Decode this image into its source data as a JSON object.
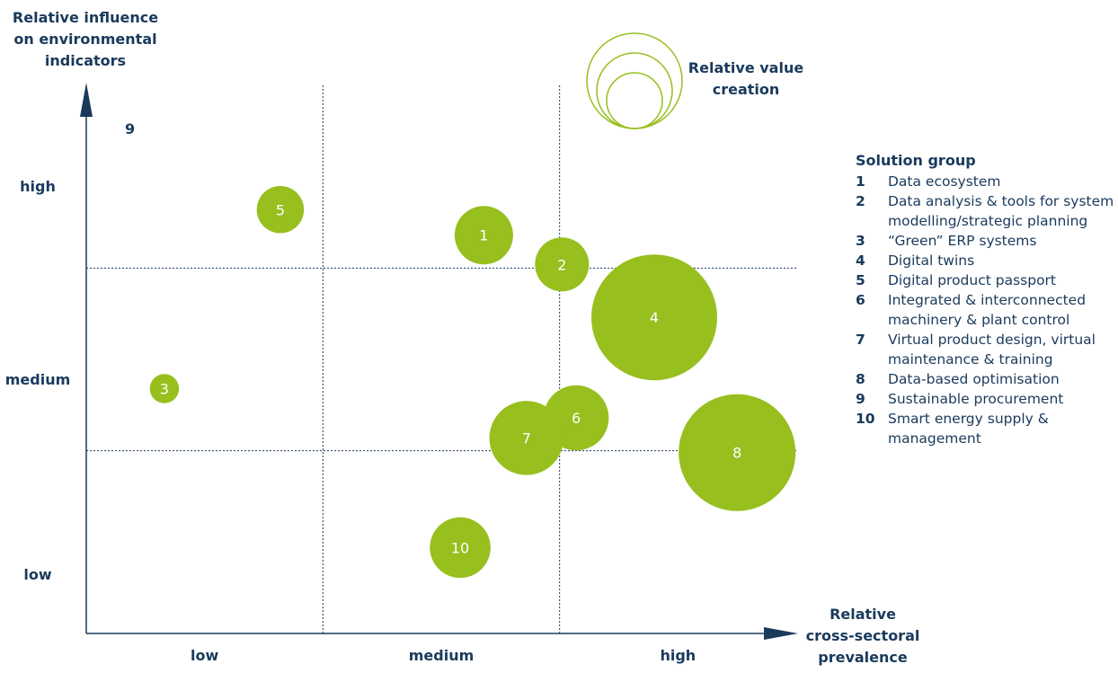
{
  "chart_data": {
    "type": "scatter",
    "title": "",
    "xlabel_lines": [
      "Relative",
      "cross-sectoral",
      "prevalence"
    ],
    "ylabel_lines": [
      "Relative influence",
      "on environmental",
      "indicators"
    ],
    "size_legend_lines": [
      "Relative value",
      "creation"
    ],
    "x_categories": [
      "low",
      "medium",
      "high"
    ],
    "y_categories": [
      "low",
      "medium",
      "high"
    ],
    "xlim": [
      0,
      3
    ],
    "ylim": [
      0,
      3
    ],
    "grid": true,
    "bubble_color": "#97bf1e",
    "axis_color": "#1a3a5c",
    "points": [
      {
        "id": "1",
        "x": 1.68,
        "y": 2.18,
        "size": 0.26
      },
      {
        "id": "2",
        "x": 2.01,
        "y": 2.02,
        "size": 0.24
      },
      {
        "id": "3",
        "x": 0.33,
        "y": 1.34,
        "size": 0.13
      },
      {
        "id": "4",
        "x": 2.4,
        "y": 1.73,
        "size": 0.56
      },
      {
        "id": "5",
        "x": 0.82,
        "y": 2.32,
        "size": 0.21
      },
      {
        "id": "6",
        "x": 2.07,
        "y": 1.18,
        "size": 0.29
      },
      {
        "id": "7",
        "x": 1.86,
        "y": 1.07,
        "size": 0.33
      },
      {
        "id": "8",
        "x": 2.75,
        "y": 0.99,
        "size": 0.52
      },
      {
        "id": "9",
        "x": 0.18,
        "y": 2.64,
        "size": 0
      },
      {
        "id": "10",
        "x": 1.58,
        "y": 0.47,
        "size": 0.27
      }
    ]
  },
  "legend": {
    "title": "Solution group",
    "items": [
      {
        "num": "1",
        "text": "Data ecosystem"
      },
      {
        "num": "2",
        "text": "Data analysis & tools for system modelling/strategic planning"
      },
      {
        "num": "3",
        "text": "“Green” ERP systems"
      },
      {
        "num": "4",
        "text": "Digital twins"
      },
      {
        "num": "5",
        "text": "Digital product passport"
      },
      {
        "num": "6",
        "text": "Integrated & interconnected machinery & plant control"
      },
      {
        "num": "7",
        "text": "Virtual product design, virtual maintenance & training"
      },
      {
        "num": "8",
        "text": "Data-based optimisation"
      },
      {
        "num": "9",
        "text": "Sustainable procurement"
      },
      {
        "num": "10",
        "text": "Smart energy supply & management"
      }
    ]
  }
}
